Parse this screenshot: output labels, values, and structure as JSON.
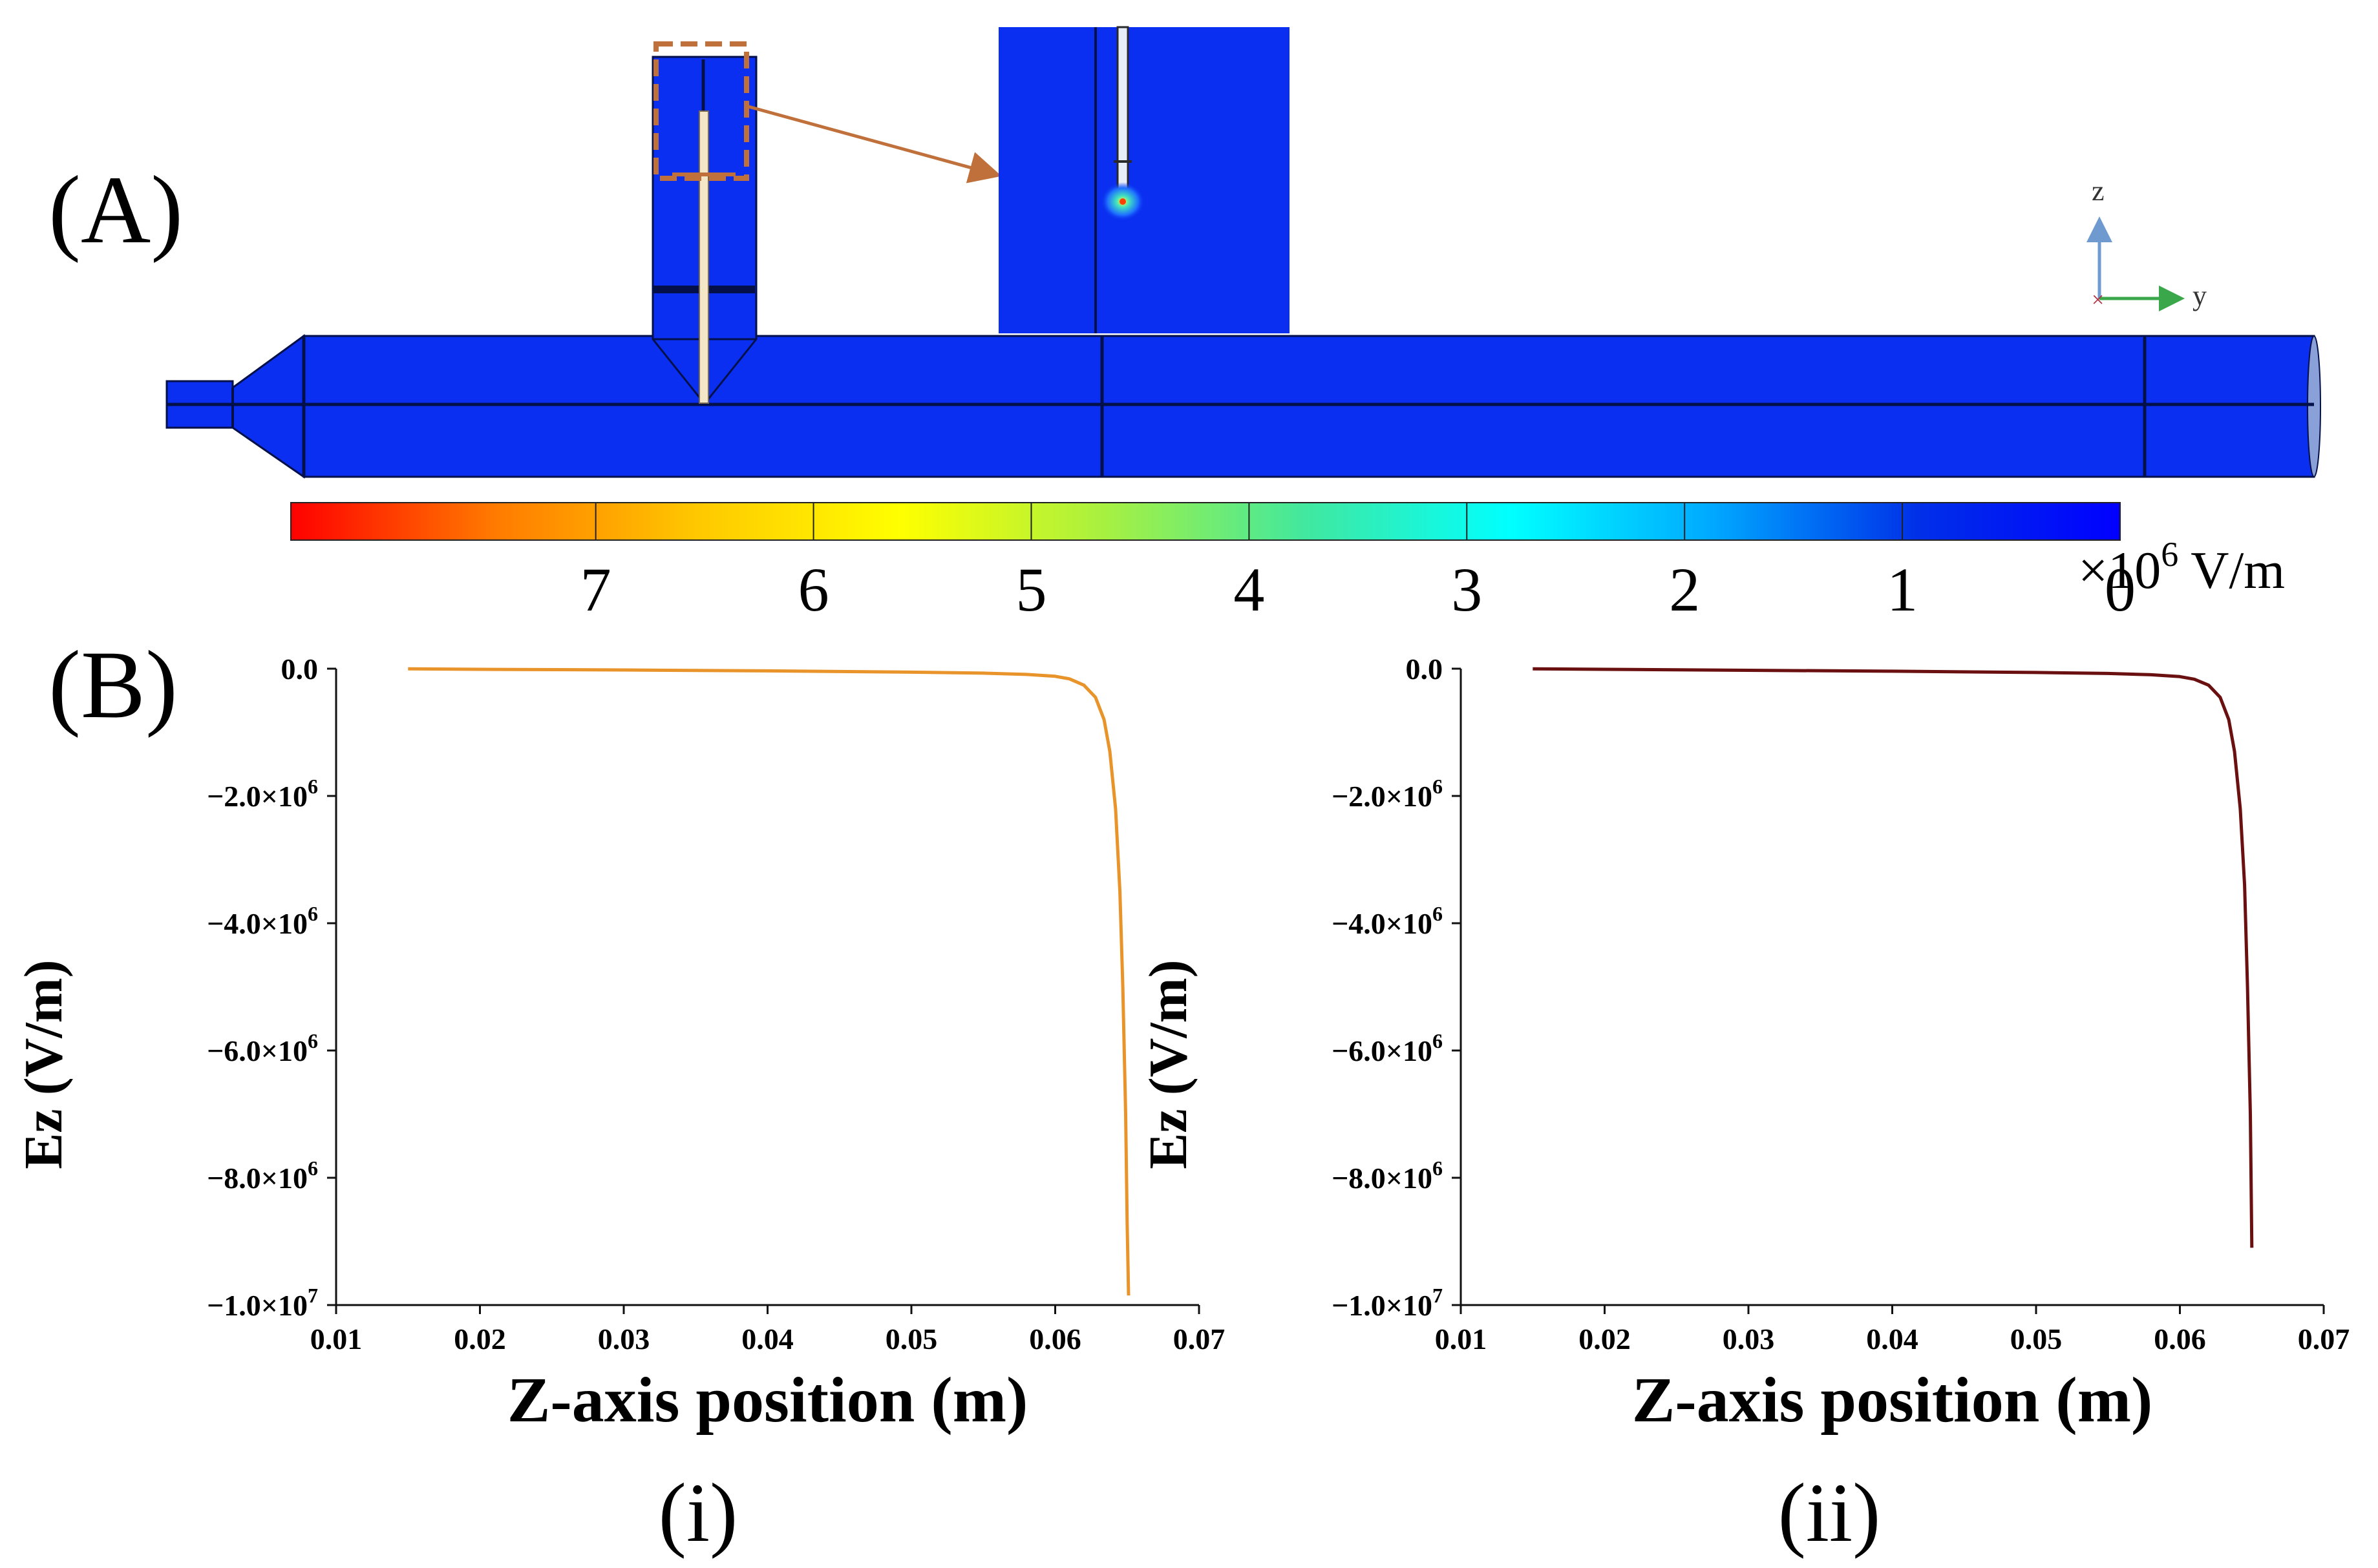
{
  "figure": {
    "panel_a_label": "(A)",
    "panel_b_label": "(B)",
    "axis_triad": {
      "z": "z",
      "y": "y"
    },
    "colorbar": {
      "ticks": [
        "7",
        "6",
        "5",
        "4",
        "3",
        "2",
        "1",
        "0"
      ],
      "unit_prefix": "×10",
      "unit_exponent": "6",
      "unit_suffix": " V/m",
      "colors": [
        "#ff0000",
        "#ff7a00",
        "#ffc800",
        "#ffff00",
        "#a8f040",
        "#40e8a0",
        "#00ffff",
        "#00a8ff",
        "#0030e8",
        "#0000ff"
      ]
    },
    "colors": {
      "geometry_fill": "#0a2ff0",
      "geometry_line": "#04104a",
      "needle": "#f3e7c8",
      "callout": "#c0703a",
      "triad_z": "#6f9ad0",
      "triad_y": "#3aa84a",
      "triad_x": "#b03040"
    }
  },
  "chart_data": [
    {
      "type": "line",
      "caption": "(i)",
      "xlabel": "Z-axis position (m)",
      "ylabel": "Ez (V/m)",
      "xlim": [
        0.01,
        0.07
      ],
      "ylim": [
        -10000000,
        0
      ],
      "xticks": [
        0.01,
        0.02,
        0.03,
        0.04,
        0.05,
        0.06,
        0.07
      ],
      "xtick_labels": [
        "0.01",
        "0.02",
        "0.03",
        "0.04",
        "0.05",
        "0.06",
        "0.07"
      ],
      "yticks": [
        0,
        -2000000,
        -4000000,
        -6000000,
        -8000000,
        -10000000
      ],
      "ytick_labels": [
        {
          "mant": "0.0",
          "exp": ""
        },
        {
          "mant": "−2.0×10",
          "exp": "6"
        },
        {
          "mant": "−4.0×10",
          "exp": "6"
        },
        {
          "mant": "−6.0×10",
          "exp": "6"
        },
        {
          "mant": "−8.0×10",
          "exp": "6"
        },
        {
          "mant": "−1.0×10",
          "exp": "7"
        }
      ],
      "series": [
        {
          "name": "Ez",
          "color": "#e8942a",
          "x": [
            0.015,
            0.02,
            0.03,
            0.04,
            0.05,
            0.055,
            0.058,
            0.06,
            0.061,
            0.062,
            0.0628,
            0.0634,
            0.0638,
            0.0642,
            0.0645,
            0.0647,
            0.0649,
            0.065,
            0.0651
          ],
          "y": [
            -2000,
            -10000,
            -20000,
            -35000,
            -55000,
            -70000,
            -90000,
            -120000,
            -160000,
            -260000,
            -450000,
            -800000,
            -1300000,
            -2200000,
            -3500000,
            -5000000,
            -7000000,
            -8700000,
            -9850000
          ]
        }
      ]
    },
    {
      "type": "line",
      "caption": "(ii)",
      "xlabel": "Z-axis position (m)",
      "ylabel": "Ez (V/m)",
      "xlim": [
        0.01,
        0.07
      ],
      "ylim": [
        -10000000,
        0
      ],
      "xticks": [
        0.01,
        0.02,
        0.03,
        0.04,
        0.05,
        0.06,
        0.07
      ],
      "xtick_labels": [
        "0.01",
        "0.02",
        "0.03",
        "0.04",
        "0.05",
        "0.06",
        "0.07"
      ],
      "yticks": [
        0,
        -2000000,
        -4000000,
        -6000000,
        -8000000,
        -10000000
      ],
      "ytick_labels": [
        {
          "mant": "0.0",
          "exp": ""
        },
        {
          "mant": "−2.0×10",
          "exp": "6"
        },
        {
          "mant": "−4.0×10",
          "exp": "6"
        },
        {
          "mant": "−6.0×10",
          "exp": "6"
        },
        {
          "mant": "−8.0×10",
          "exp": "6"
        },
        {
          "mant": "−1.0×10",
          "exp": "7"
        }
      ],
      "series": [
        {
          "name": "Ez",
          "color": "#6a1010",
          "x": [
            0.015,
            0.02,
            0.03,
            0.04,
            0.05,
            0.055,
            0.058,
            0.06,
            0.061,
            0.062,
            0.0628,
            0.0634,
            0.0638,
            0.0642,
            0.0645,
            0.0647,
            0.0649,
            0.065
          ],
          "y": [
            -2000,
            -10000,
            -25000,
            -40000,
            -60000,
            -75000,
            -95000,
            -125000,
            -165000,
            -260000,
            -450000,
            -800000,
            -1300000,
            -2200000,
            -3400000,
            -5000000,
            -7000000,
            -9100000
          ]
        }
      ]
    }
  ]
}
